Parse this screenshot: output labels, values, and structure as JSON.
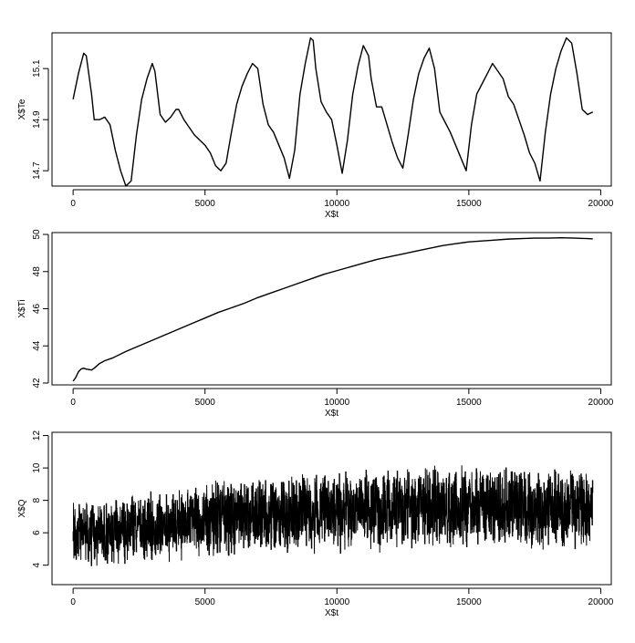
{
  "chart_data": [
    {
      "type": "line",
      "xlabel": "X$t",
      "ylabel": "X$Te",
      "xlim": [
        -800,
        20400
      ],
      "ylim": [
        14.64,
        15.24
      ],
      "xticks": [
        0,
        5000,
        10000,
        15000,
        20000
      ],
      "xtick_labels": [
        "0",
        "5000",
        "10000",
        "15000",
        "20000"
      ],
      "yticks": [
        14.7,
        14.9,
        15.1
      ],
      "ytick_labels": [
        "14.7",
        "14.9",
        "15.1"
      ],
      "grid": false,
      "series": [
        {
          "x": [
            0,
            200,
            400,
            500,
            700,
            800,
            1000,
            1200,
            1400,
            1600,
            1800,
            2000,
            2200,
            2400,
            2600,
            2800,
            3000,
            3100,
            3300,
            3500,
            3700,
            3900,
            4000,
            4200,
            4400,
            4600,
            4800,
            5000,
            5200,
            5400,
            5600,
            5800,
            6000,
            6200,
            6400,
            6600,
            6800,
            7000,
            7200,
            7400,
            7600,
            7800,
            8000,
            8200,
            8400,
            8600,
            8800,
            9000,
            9100,
            9200,
            9400,
            9600,
            9800,
            10000,
            10200,
            10400,
            10600,
            10800,
            11000,
            11200,
            11300,
            11500,
            11700,
            11900,
            12100,
            12300,
            12500,
            12700,
            12900,
            13100,
            13300,
            13500,
            13700,
            13900,
            14100,
            14300,
            14500,
            14700,
            14900,
            15100,
            15300,
            15500,
            15700,
            15900,
            16100,
            16300,
            16500,
            16700,
            16900,
            17100,
            17300,
            17500,
            17700,
            17900,
            18100,
            18300,
            18500,
            18700,
            18900,
            19100,
            19300,
            19500,
            19700
          ],
          "values": [
            14.98,
            15.08,
            15.16,
            15.15,
            15.0,
            14.9,
            14.9,
            14.91,
            14.88,
            14.78,
            14.7,
            14.64,
            14.66,
            14.84,
            14.98,
            15.06,
            15.12,
            15.09,
            14.92,
            14.89,
            14.91,
            14.94,
            14.94,
            14.9,
            14.87,
            14.84,
            14.82,
            14.8,
            14.77,
            14.72,
            14.7,
            14.73,
            14.85,
            14.96,
            15.03,
            15.08,
            15.12,
            15.1,
            14.96,
            14.88,
            14.85,
            14.8,
            14.75,
            14.67,
            14.78,
            15.0,
            15.12,
            15.22,
            15.21,
            15.1,
            14.97,
            14.93,
            14.9,
            14.8,
            14.69,
            14.82,
            15.0,
            15.11,
            15.19,
            15.15,
            15.06,
            14.95,
            14.95,
            14.88,
            14.81,
            14.75,
            14.71,
            14.84,
            14.98,
            15.08,
            15.14,
            15.18,
            15.1,
            14.93,
            14.89,
            14.85,
            14.8,
            14.75,
            14.7,
            14.88,
            15.0,
            15.04,
            15.08,
            15.12,
            15.09,
            15.06,
            14.99,
            14.96,
            14.9,
            14.84,
            14.77,
            14.73,
            14.66,
            14.85,
            15.0,
            15.1,
            15.17,
            15.22,
            15.2,
            15.08,
            14.94,
            14.92,
            14.93
          ]
        }
      ]
    },
    {
      "type": "line",
      "xlabel": "X$t",
      "ylabel": "X$Ti",
      "xlim": [
        -800,
        20400
      ],
      "ylim": [
        41.9,
        50.1
      ],
      "xticks": [
        0,
        5000,
        10000,
        15000,
        20000
      ],
      "xtick_labels": [
        "0",
        "5000",
        "10000",
        "15000",
        "20000"
      ],
      "yticks": [
        42,
        44,
        46,
        48,
        50
      ],
      "ytick_labels": [
        "42",
        "44",
        "46",
        "48",
        "50"
      ],
      "grid": false,
      "series": [
        {
          "x": [
            0,
            100,
            200,
            300,
            400,
            500,
            700,
            800,
            1000,
            1200,
            1500,
            2000,
            2500,
            3000,
            3500,
            4000,
            4500,
            5000,
            5500,
            6000,
            6500,
            7000,
            7500,
            8000,
            8500,
            9000,
            9500,
            10000,
            10500,
            11000,
            11500,
            12000,
            12500,
            13000,
            13500,
            14000,
            14500,
            15000,
            15500,
            16000,
            16500,
            17000,
            17500,
            18000,
            18500,
            19000,
            19500,
            19700
          ],
          "values": [
            42.1,
            42.3,
            42.6,
            42.75,
            42.8,
            42.75,
            42.7,
            42.8,
            43.05,
            43.2,
            43.35,
            43.7,
            44.0,
            44.3,
            44.6,
            44.9,
            45.2,
            45.5,
            45.8,
            46.05,
            46.3,
            46.6,
            46.85,
            47.1,
            47.35,
            47.6,
            47.85,
            48.05,
            48.25,
            48.45,
            48.65,
            48.8,
            48.95,
            49.1,
            49.25,
            49.4,
            49.5,
            49.6,
            49.65,
            49.7,
            49.75,
            49.78,
            49.8,
            49.8,
            49.82,
            49.8,
            49.78,
            49.76
          ]
        }
      ]
    },
    {
      "type": "line",
      "xlabel": "X$t",
      "ylabel": "X$Q",
      "xlim": [
        -800,
        20400
      ],
      "ylim": [
        2.8,
        12.2
      ],
      "xticks": [
        0,
        5000,
        10000,
        15000,
        20000
      ],
      "xtick_labels": [
        "0",
        "5000",
        "10000",
        "15000",
        "20000"
      ],
      "yticks": [
        4,
        6,
        8,
        10,
        12
      ],
      "ytick_labels": [
        "4",
        "6",
        "8",
        "10",
        "12"
      ],
      "grid": false,
      "series": [
        {
          "x": [
            0,
            1000,
            2000,
            3000,
            4000,
            5000,
            6000,
            7000,
            8000,
            9000,
            10000,
            11000,
            12000,
            13000,
            14000,
            15000,
            16000,
            17000,
            18000,
            19000,
            19700
          ],
          "values": [
            6.0,
            6.0,
            6.2,
            6.4,
            6.6,
            6.8,
            7.0,
            7.1,
            7.2,
            7.3,
            7.35,
            7.45,
            7.5,
            7.55,
            7.6,
            7.6,
            7.6,
            7.55,
            7.5,
            7.5,
            7.5
          ],
          "spread": [
            5.0,
            5.5,
            5.6,
            5.8,
            6.0,
            6.2,
            6.4,
            6.6,
            6.6,
            6.8,
            6.8,
            6.8,
            7.0,
            7.0,
            7.0,
            7.0,
            6.8,
            6.8,
            6.6,
            6.6,
            6.4
          ]
        }
      ]
    }
  ]
}
